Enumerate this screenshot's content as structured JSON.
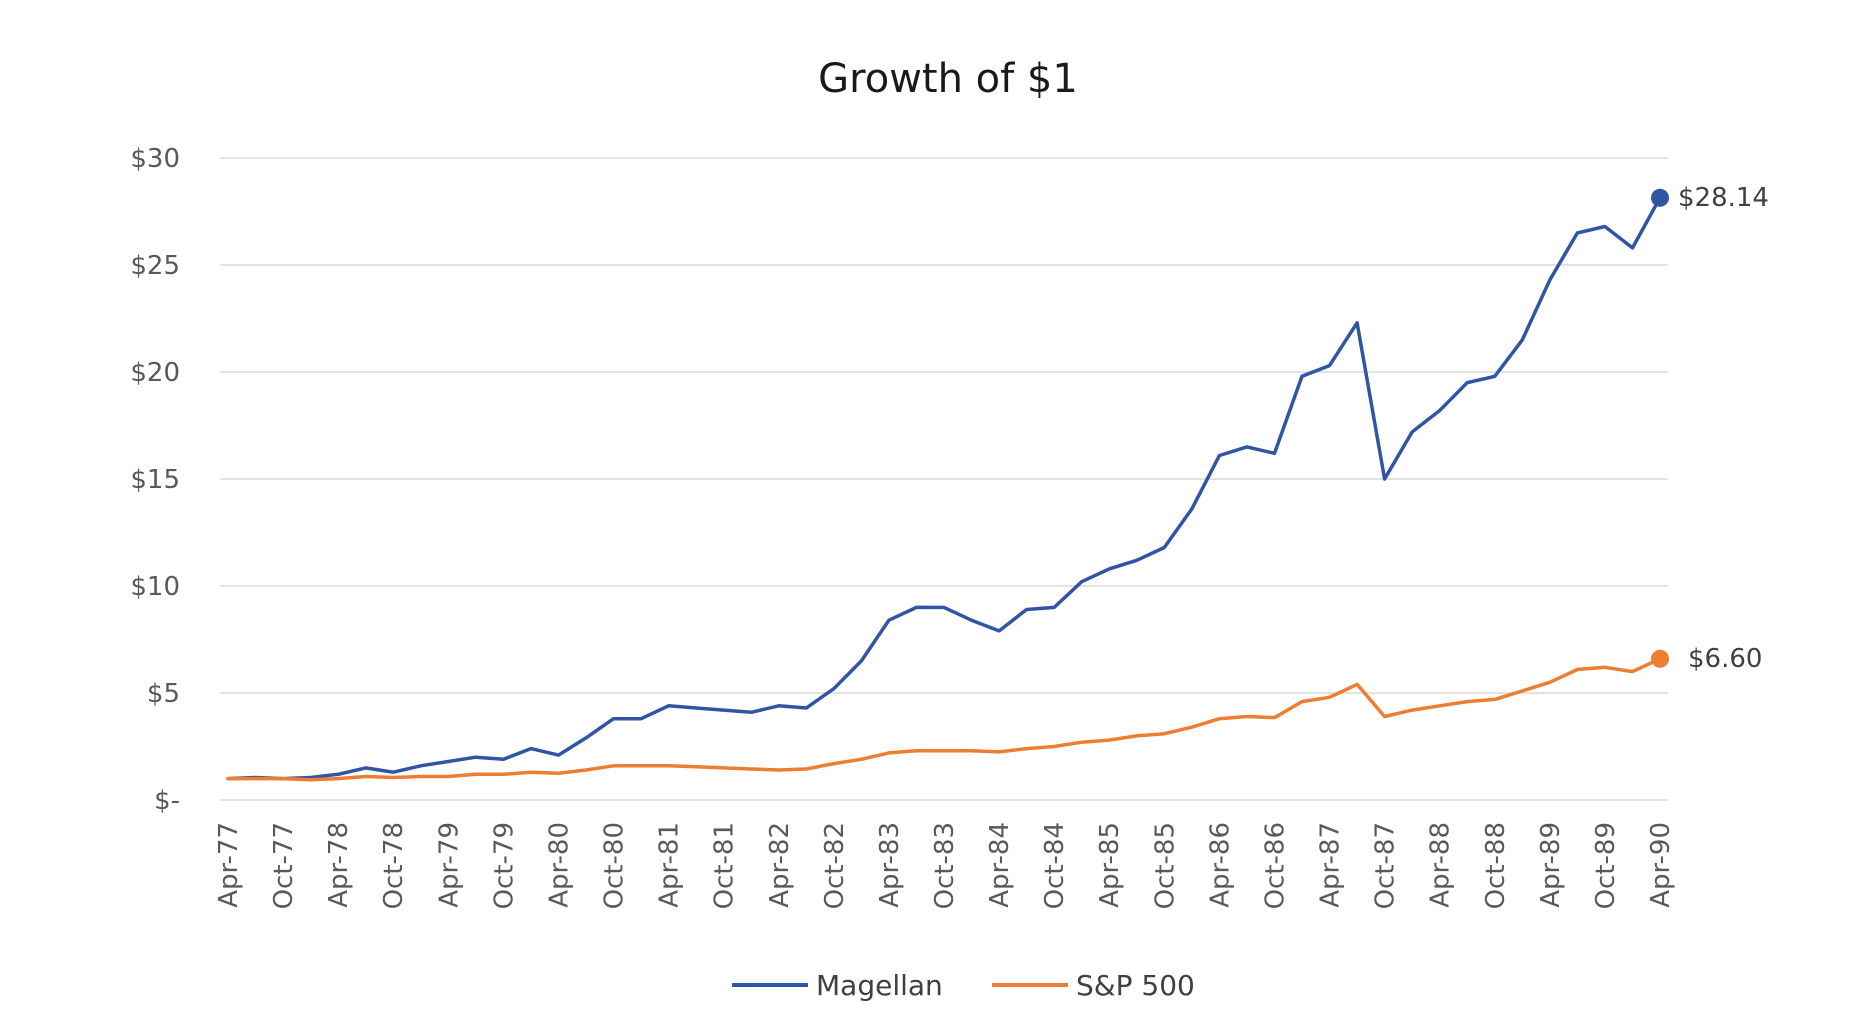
{
  "chart_data": {
    "type": "line",
    "title": "Growth of $1",
    "xlabel": "",
    "ylabel": "",
    "ylim": [
      0,
      30
    ],
    "y_ticks": [
      {
        "value": 0,
        "label": "$-"
      },
      {
        "value": 5,
        "label": "$5"
      },
      {
        "value": 10,
        "label": "$10"
      },
      {
        "value": 15,
        "label": "$15"
      },
      {
        "value": 20,
        "label": "$20"
      },
      {
        "value": 25,
        "label": "$25"
      },
      {
        "value": 30,
        "label": "$30"
      }
    ],
    "x_ticks": [
      "Apr-77",
      "Oct-77",
      "Apr-78",
      "Oct-78",
      "Apr-79",
      "Oct-79",
      "Apr-80",
      "Oct-80",
      "Apr-81",
      "Oct-81",
      "Apr-82",
      "Oct-82",
      "Apr-83",
      "Oct-83",
      "Apr-84",
      "Oct-84",
      "Apr-85",
      "Oct-85",
      "Apr-86",
      "Oct-86",
      "Apr-87",
      "Oct-87",
      "Apr-88",
      "Oct-88",
      "Apr-89",
      "Oct-89",
      "Apr-90"
    ],
    "grid": true,
    "legend": "bottom",
    "series": [
      {
        "name": "Magellan",
        "color": "#2f55a4",
        "end_label": "$28.14",
        "points": [
          [
            "Apr-77",
            1.0
          ],
          [
            "Jul-77",
            1.05
          ],
          [
            "Oct-77",
            1.0
          ],
          [
            "Jan-78",
            1.05
          ],
          [
            "Apr-78",
            1.2
          ],
          [
            "Jul-78",
            1.5
          ],
          [
            "Oct-78",
            1.3
          ],
          [
            "Jan-79",
            1.6
          ],
          [
            "Apr-79",
            1.8
          ],
          [
            "Jul-79",
            2.0
          ],
          [
            "Oct-79",
            1.9
          ],
          [
            "Jan-80",
            2.4
          ],
          [
            "Apr-80",
            2.1
          ],
          [
            "Jul-80",
            2.9
          ],
          [
            "Oct-80",
            3.8
          ],
          [
            "Jan-81",
            3.8
          ],
          [
            "Apr-81",
            4.4
          ],
          [
            "Jul-81",
            4.3
          ],
          [
            "Oct-81",
            4.2
          ],
          [
            "Jan-82",
            4.1
          ],
          [
            "Apr-82",
            4.4
          ],
          [
            "Jul-82",
            4.3
          ],
          [
            "Oct-82",
            5.2
          ],
          [
            "Jan-83",
            6.5
          ],
          [
            "Apr-83",
            8.4
          ],
          [
            "Jul-83",
            9.0
          ],
          [
            "Oct-83",
            9.0
          ],
          [
            "Jan-84",
            8.4
          ],
          [
            "Apr-84",
            7.9
          ],
          [
            "Jul-84",
            8.9
          ],
          [
            "Oct-84",
            9.0
          ],
          [
            "Jan-85",
            10.2
          ],
          [
            "Apr-85",
            10.8
          ],
          [
            "Jul-85",
            11.2
          ],
          [
            "Oct-85",
            11.8
          ],
          [
            "Jan-86",
            13.6
          ],
          [
            "Apr-86",
            16.1
          ],
          [
            "Jul-86",
            16.5
          ],
          [
            "Oct-86",
            16.2
          ],
          [
            "Jan-87",
            19.8
          ],
          [
            "Apr-87",
            20.3
          ],
          [
            "Jul-87",
            22.3
          ],
          [
            "Oct-87",
            15.0
          ],
          [
            "Jan-88",
            17.2
          ],
          [
            "Apr-88",
            18.2
          ],
          [
            "Jul-88",
            19.5
          ],
          [
            "Oct-88",
            19.8
          ],
          [
            "Jan-89",
            21.5
          ],
          [
            "Apr-89",
            24.3
          ],
          [
            "Jul-89",
            26.5
          ],
          [
            "Oct-89",
            26.8
          ],
          [
            "Jan-90",
            25.8
          ],
          [
            "Apr-90",
            28.14
          ]
        ]
      },
      {
        "name": "S&P 500",
        "color": "#ed7d31",
        "end_label": "$6.60",
        "points": [
          [
            "Apr-77",
            1.0
          ],
          [
            "Jul-77",
            1.0
          ],
          [
            "Oct-77",
            1.0
          ],
          [
            "Jan-78",
            0.95
          ],
          [
            "Apr-78",
            1.0
          ],
          [
            "Jul-78",
            1.1
          ],
          [
            "Oct-78",
            1.05
          ],
          [
            "Jan-79",
            1.1
          ],
          [
            "Apr-79",
            1.1
          ],
          [
            "Jul-79",
            1.2
          ],
          [
            "Oct-79",
            1.2
          ],
          [
            "Jan-80",
            1.3
          ],
          [
            "Apr-80",
            1.25
          ],
          [
            "Jul-80",
            1.4
          ],
          [
            "Oct-80",
            1.6
          ],
          [
            "Jan-81",
            1.6
          ],
          [
            "Apr-81",
            1.6
          ],
          [
            "Jul-81",
            1.55
          ],
          [
            "Oct-81",
            1.5
          ],
          [
            "Jan-82",
            1.45
          ],
          [
            "Apr-82",
            1.4
          ],
          [
            "Jul-82",
            1.45
          ],
          [
            "Oct-82",
            1.7
          ],
          [
            "Jan-83",
            1.9
          ],
          [
            "Apr-83",
            2.2
          ],
          [
            "Jul-83",
            2.3
          ],
          [
            "Oct-83",
            2.3
          ],
          [
            "Jan-84",
            2.3
          ],
          [
            "Apr-84",
            2.25
          ],
          [
            "Jul-84",
            2.4
          ],
          [
            "Oct-84",
            2.5
          ],
          [
            "Jan-85",
            2.7
          ],
          [
            "Apr-85",
            2.8
          ],
          [
            "Jul-85",
            3.0
          ],
          [
            "Oct-85",
            3.1
          ],
          [
            "Jan-86",
            3.4
          ],
          [
            "Apr-86",
            3.8
          ],
          [
            "Jul-86",
            3.9
          ],
          [
            "Oct-86",
            3.85
          ],
          [
            "Jan-87",
            4.6
          ],
          [
            "Apr-87",
            4.8
          ],
          [
            "Jul-87",
            5.4
          ],
          [
            "Oct-87",
            3.9
          ],
          [
            "Jan-88",
            4.2
          ],
          [
            "Apr-88",
            4.4
          ],
          [
            "Jul-88",
            4.6
          ],
          [
            "Oct-88",
            4.7
          ],
          [
            "Jan-89",
            5.1
          ],
          [
            "Apr-89",
            5.5
          ],
          [
            "Jul-89",
            6.1
          ],
          [
            "Oct-89",
            6.2
          ],
          [
            "Jan-90",
            6.0
          ],
          [
            "Apr-90",
            6.6
          ]
        ]
      }
    ]
  }
}
